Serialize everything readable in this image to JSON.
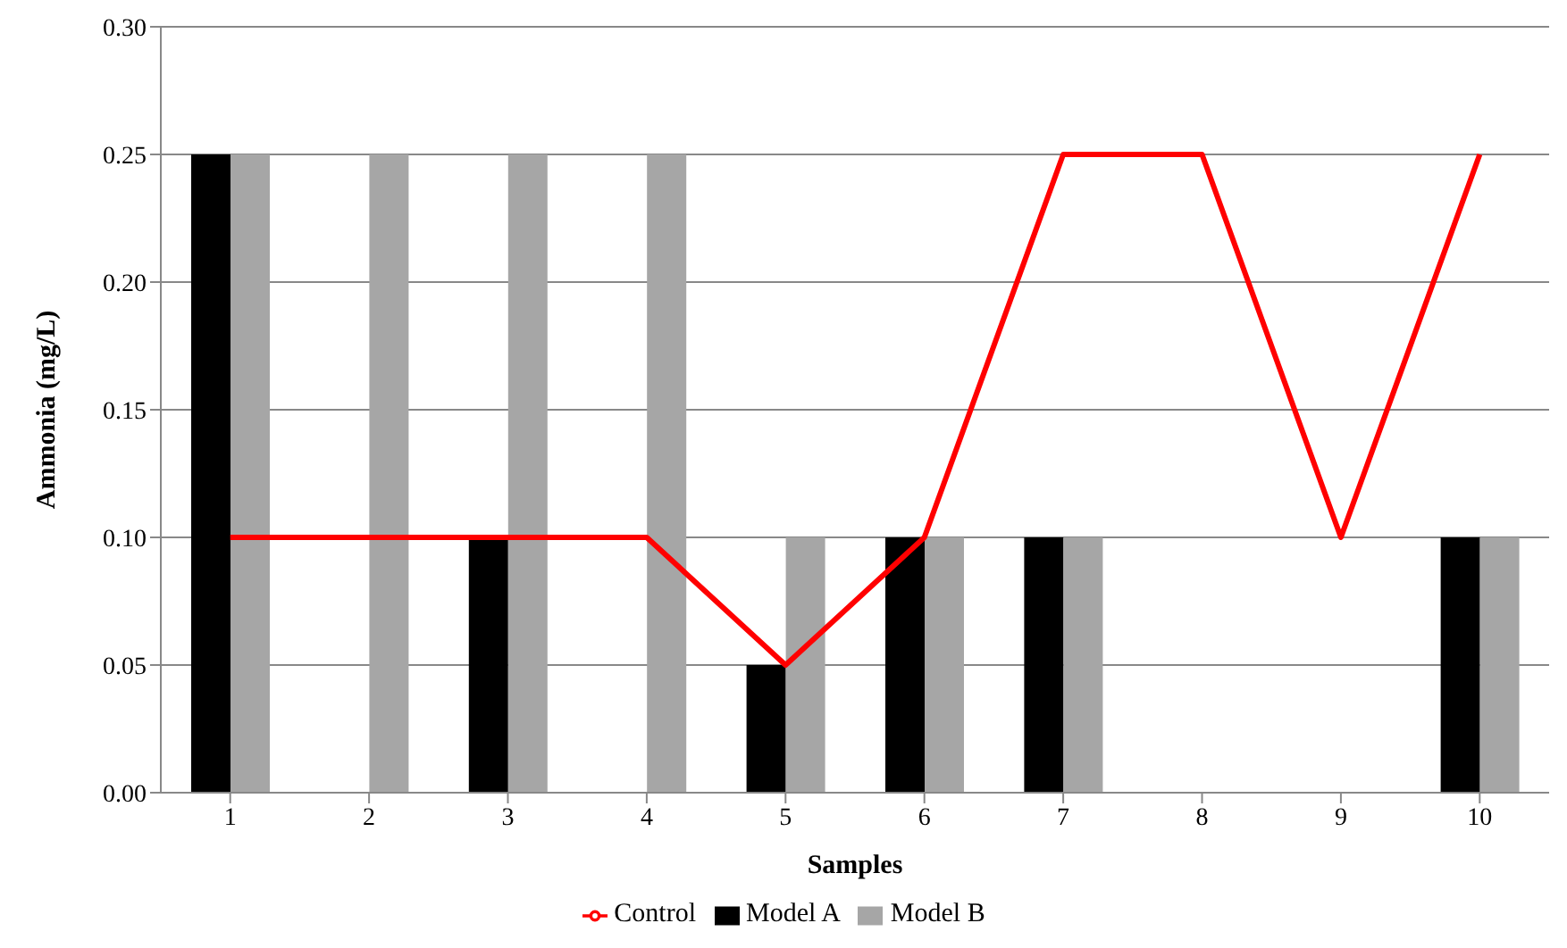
{
  "chart_data": {
    "type": "bar",
    "xlabel": "Samples",
    "ylabel": "Ammonia  (mg/L)",
    "categories": [
      "1",
      "2",
      "3",
      "4",
      "5",
      "6",
      "7",
      "8",
      "9",
      "10"
    ],
    "series": [
      {
        "name": "Model A",
        "color": "#000000",
        "values": [
          0.25,
          0,
          0.1,
          0,
          0.05,
          0.1,
          0.1,
          0,
          0,
          0.1
        ]
      },
      {
        "name": "Model B",
        "color": "#a6a6a6",
        "values": [
          0.25,
          0.25,
          0.25,
          0.25,
          0.1,
          0.1,
          0.1,
          0,
          0,
          0.1
        ]
      },
      {
        "name": "Control",
        "type": "line",
        "color": "#ff0000",
        "values": [
          0.1,
          0.1,
          0.1,
          0.1,
          0.05,
          0.1,
          0.25,
          0.25,
          0.1,
          0.25
        ]
      }
    ],
    "ylim": [
      0,
      0.3
    ],
    "yticks": [
      {
        "value": 0,
        "label": "0.00"
      },
      {
        "value": 0.05,
        "label": "0.05"
      },
      {
        "value": 0.1,
        "label": "0.10"
      },
      {
        "value": 0.15,
        "label": "0.15"
      },
      {
        "value": 0.2,
        "label": "0.20"
      },
      {
        "value": 0.25,
        "label": "0.25"
      },
      {
        "value": 0.3,
        "label": "0.30"
      }
    ],
    "grid": "y",
    "legend": "bottom",
    "marker": "none",
    "line_style": "solid"
  }
}
